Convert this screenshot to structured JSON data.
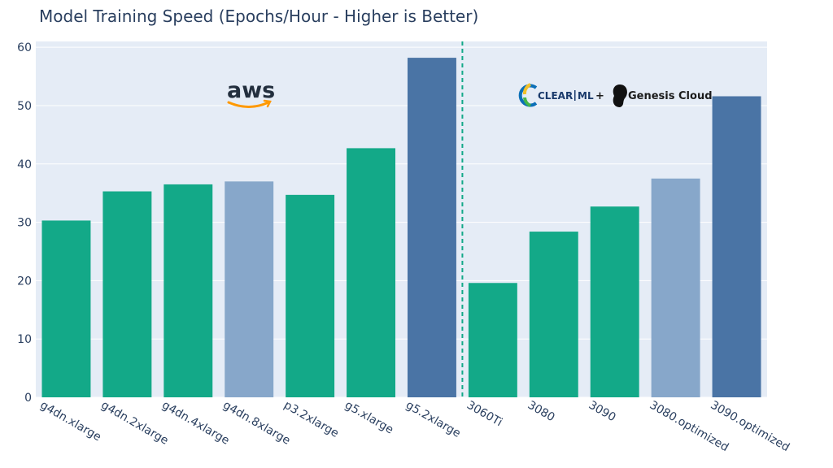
{
  "chart_data": {
    "type": "bar",
    "title": "Model Training Speed (Epochs/Hour - Higher is Better)",
    "xlabel": "",
    "ylabel": "",
    "ylim": [
      0,
      61
    ],
    "yticks": [
      0,
      10,
      20,
      30,
      40,
      50,
      60
    ],
    "grid": true,
    "categories": [
      "g4dn.xlarge",
      "g4dn.2xlarge",
      "g4dn.4xlarge",
      "g4dn.8xlarge",
      "p3.2xlarge",
      "g5.xlarge",
      "g5.2xlarge",
      "3060Ti",
      "3080",
      "3090",
      "3080.optimized",
      "3090.optimized"
    ],
    "values": [
      30.3,
      35.3,
      36.5,
      37.0,
      34.7,
      42.7,
      58.2,
      19.6,
      28.4,
      32.7,
      37.5,
      51.6
    ],
    "bar_colors": [
      "#13a988",
      "#13a988",
      "#13a988",
      "#87a7ca",
      "#13a988",
      "#13a988",
      "#4a74a5",
      "#13a988",
      "#13a988",
      "#13a988",
      "#87a7ca",
      "#4a74a5"
    ],
    "divider_after_index": 6,
    "divider_color": "#13a988",
    "plot_background": "#e5ecf6",
    "logos": {
      "aws": "aws",
      "clearml_clear": "CLEAR",
      "clearml_ml": "ML",
      "plus": "+",
      "genesis": "Genesis Cloud"
    }
  }
}
